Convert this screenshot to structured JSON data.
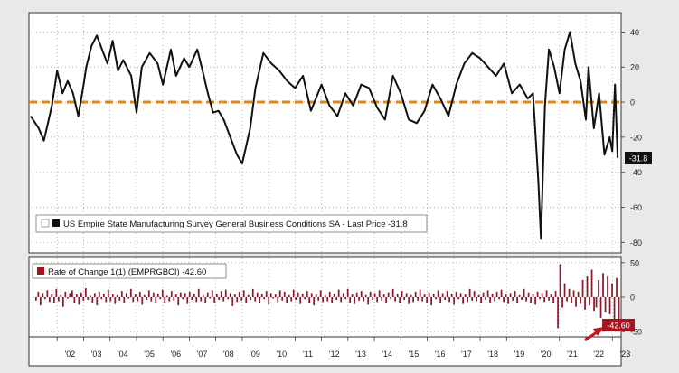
{
  "colors": {
    "page": "#e9e9e9",
    "panel": "#ffffff",
    "main_line": "#111111",
    "zero_line": "#d8891c",
    "bars": "#8b1a2b",
    "badge_dark": "#111111",
    "badge_red": "#a3141e",
    "arrow": "#c4161c",
    "axis_text": "#222222"
  },
  "chart_data": [
    {
      "type": "line",
      "legend": "US Empire State Manufacturing Survey General Business Conditions SA - Last Price -31.8",
      "last_value_label": "-31.8",
      "ylim": [
        -85,
        50
      ],
      "yticks": [
        -80,
        -60,
        -40,
        -20,
        0,
        20,
        40
      ],
      "ytick_labels": [
        "-80",
        "-60",
        "-40",
        "-20",
        "0",
        "20",
        "40"
      ],
      "reference_line": 0,
      "xlim": [
        2001.0,
        2023.3
      ],
      "x": [
        2001.0,
        2001.3,
        2001.5,
        2001.8,
        2002.0,
        2002.2,
        2002.4,
        2002.6,
        2002.8,
        2003.0,
        2003.1,
        2003.3,
        2003.5,
        2003.7,
        2003.9,
        2004.1,
        2004.3,
        2004.5,
        2004.8,
        2005.0,
        2005.2,
        2005.5,
        2005.8,
        2006.0,
        2006.3,
        2006.5,
        2006.8,
        2007.0,
        2007.3,
        2007.5,
        2007.7,
        2007.9,
        2008.1,
        2008.3,
        2008.6,
        2008.8,
        2009.0,
        2009.3,
        2009.5,
        2009.8,
        2010.1,
        2010.4,
        2010.7,
        2011.0,
        2011.3,
        2011.6,
        2012.0,
        2012.3,
        2012.6,
        2012.9,
        2013.2,
        2013.5,
        2013.8,
        2014.1,
        2014.4,
        2014.7,
        2015.0,
        2015.3,
        2015.6,
        2015.9,
        2016.2,
        2016.5,
        2016.8,
        2017.1,
        2017.4,
        2017.7,
        2018.0,
        2018.3,
        2018.6,
        2018.9,
        2019.2,
        2019.5,
        2019.8,
        2020.0,
        2020.2,
        2020.3,
        2020.45,
        2020.6,
        2020.8,
        2021.0,
        2021.2,
        2021.4,
        2021.6,
        2021.8,
        2022.0,
        2022.1,
        2022.3,
        2022.5,
        2022.7,
        2022.9,
        2023.0,
        2023.1,
        2023.2
      ],
      "values": [
        -8,
        -15,
        -22,
        -2,
        18,
        5,
        12,
        5,
        -8,
        10,
        20,
        32,
        38,
        30,
        22,
        35,
        18,
        24,
        15,
        -6,
        20,
        28,
        22,
        10,
        30,
        15,
        25,
        20,
        30,
        18,
        5,
        -6,
        -5,
        -10,
        -22,
        -30,
        -35,
        -15,
        8,
        28,
        22,
        18,
        12,
        8,
        15,
        -5,
        10,
        -2,
        -8,
        5,
        -2,
        10,
        8,
        -3,
        -10,
        15,
        5,
        -10,
        -12,
        -5,
        10,
        2,
        -8,
        10,
        22,
        28,
        25,
        20,
        15,
        22,
        5,
        10,
        2,
        5,
        -45,
        -78,
        -2,
        30,
        20,
        5,
        30,
        40,
        22,
        12,
        -10,
        20,
        -15,
        5,
        -30,
        -20,
        -28,
        10,
        -31.8
      ]
    },
    {
      "type": "bar",
      "legend": "Rate of Change 1(1) (EMPRGBCI) -42.60",
      "last_value_label": "-42.60",
      "ylim": [
        -55,
        55
      ],
      "yticks": [
        -50,
        0,
        50
      ],
      "ytick_labels": [
        "-50",
        "0",
        "50"
      ],
      "xlim": [
        2001.0,
        2023.3
      ],
      "values": [
        -5,
        8,
        -12,
        6,
        -3,
        10,
        -7,
        4,
        -9,
        12,
        -6,
        3,
        -14,
        8,
        -2,
        6,
        10,
        -8,
        4,
        -11,
        7,
        -5,
        13,
        -4,
        2,
        -9,
        6,
        -12,
        8,
        -3,
        5,
        -7,
        11,
        -6,
        4,
        -10,
        3,
        -5,
        9,
        -8,
        6,
        -2,
        12,
        -7,
        4,
        -6,
        8,
        -11,
        3,
        -4,
        10,
        -6,
        7,
        -9,
        5,
        -3,
        11,
        -8,
        2,
        -6,
        9,
        -5,
        4,
        -12,
        7,
        -3,
        6,
        -10,
        8,
        -4,
        5,
        -7,
        12,
        -6,
        3,
        -9,
        7,
        -2,
        10,
        -8,
        5,
        -4,
        9,
        -6,
        11,
        -3,
        6,
        -13,
        4,
        -7,
        8,
        -5,
        10,
        -9,
        3,
        -4,
        12,
        -6,
        7,
        -8,
        5,
        -3,
        9,
        -11,
        6,
        -2,
        4,
        -7,
        10,
        -5,
        8,
        -9,
        3,
        -6,
        11,
        -4,
        7,
        -10,
        5,
        -3,
        9,
        -8,
        6,
        -12,
        4,
        -5,
        10,
        -7,
        3,
        -6,
        8,
        -9,
        5,
        -4,
        11,
        -7,
        6,
        -3,
        12,
        -8,
        4,
        -10,
        7,
        -5,
        9,
        -6,
        3,
        -11,
        8,
        -4,
        6,
        -7,
        10,
        -5,
        4,
        -9,
        7,
        -3,
        12,
        -6,
        5,
        -8,
        9,
        -4,
        6,
        -10,
        3,
        -7,
        8,
        -5,
        11,
        -6,
        4,
        -9,
        7,
        -12,
        5,
        -3,
        10,
        -8,
        6,
        -4,
        9,
        -7,
        5,
        -11,
        8,
        -3,
        6,
        -10,
        4,
        -7,
        12,
        -5,
        9,
        -6,
        3,
        -8,
        7,
        -4,
        10,
        -9,
        5,
        -6,
        8,
        -3,
        11,
        -7,
        4,
        -10,
        6,
        -5,
        9,
        -8,
        3,
        -4,
        12,
        -6,
        7,
        -9,
        5,
        -11,
        8,
        -3,
        6,
        -7,
        10,
        -5,
        4,
        -8,
        9,
        -45,
        48,
        -15,
        20,
        -6,
        12,
        -8,
        10,
        -14,
        8,
        -10,
        25,
        -18,
        30,
        -12,
        40,
        -20,
        -15,
        25,
        -30,
        35,
        -22,
        30,
        -25,
        20,
        -35,
        28,
        -42.6
      ],
      "tick_labels": [
        "'02",
        "'03",
        "'04",
        "'05",
        "'06",
        "'07",
        "'08",
        "'09",
        "'10",
        "'11",
        "'12",
        "'13",
        "'14",
        "'15",
        "'16",
        "'17",
        "'18",
        "'19",
        "'20",
        "'21",
        "'22",
        "'23"
      ]
    }
  ]
}
